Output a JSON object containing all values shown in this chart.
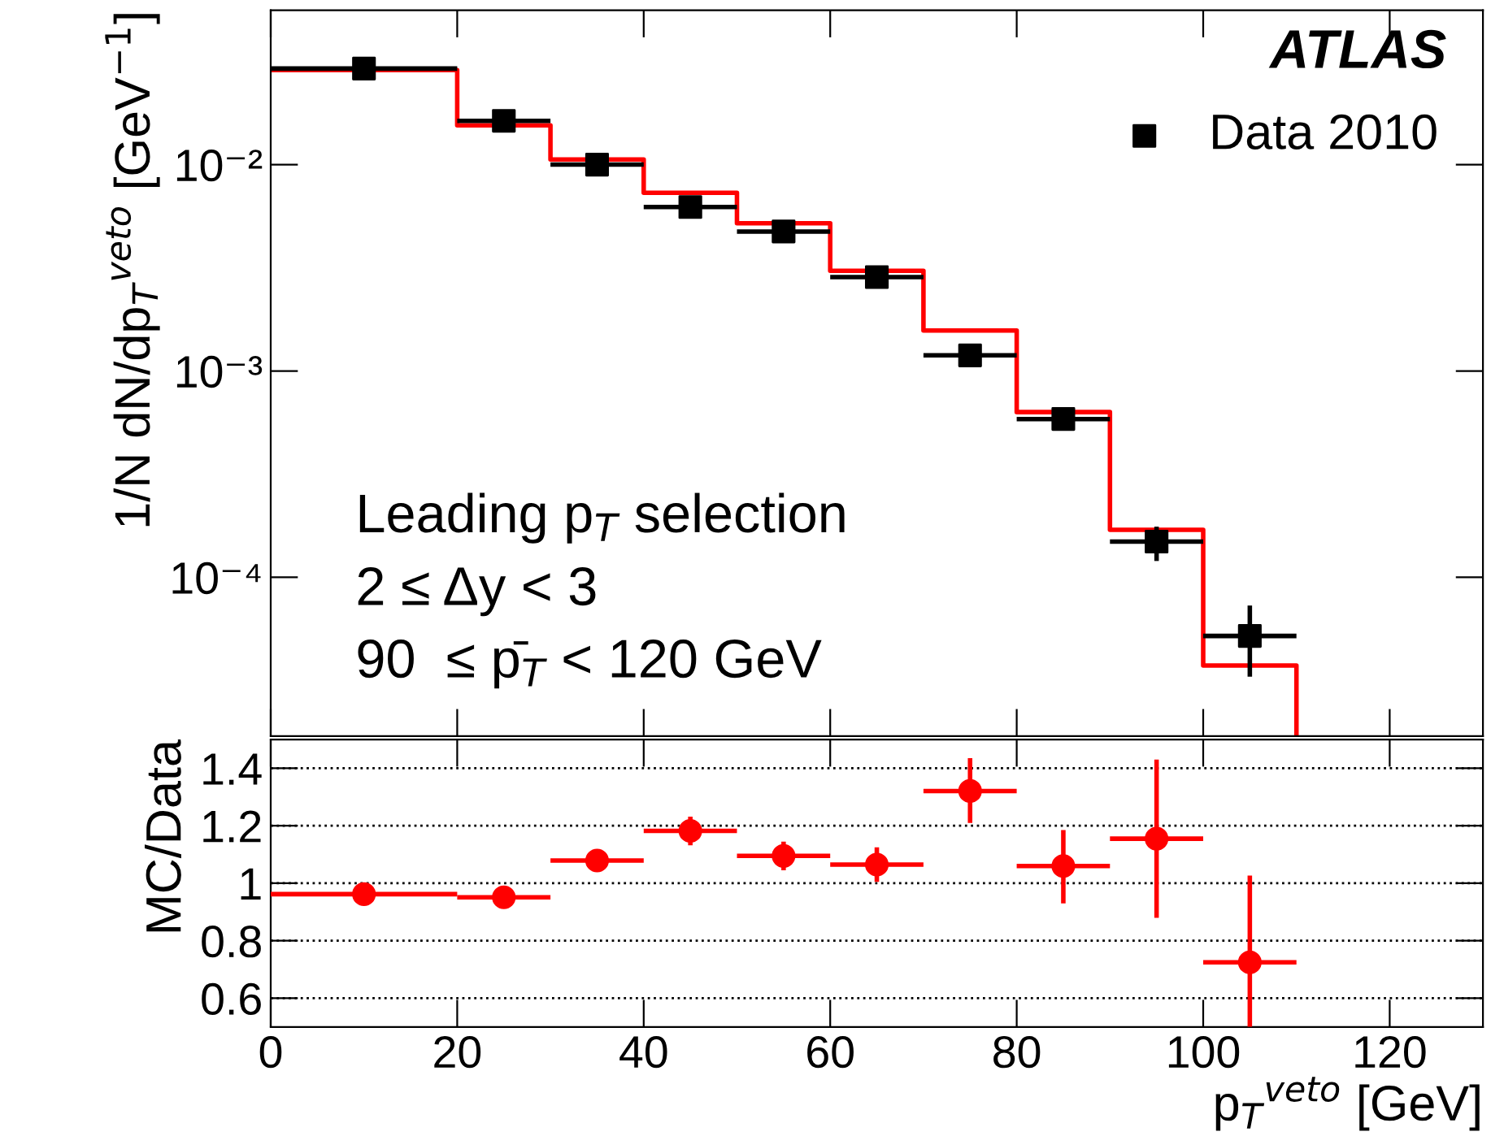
{
  "chart_data": [
    {
      "type": "scatter",
      "ylabel": "1/N dN/dp$_{T}$$^{veto}$ [GeV$^{−1}$]",
      "log": true,
      "xlim": [
        0,
        130
      ],
      "ylim": [
        1.7e-05,
        0.056
      ],
      "xticks": [
        0,
        20,
        40,
        60,
        80,
        100,
        120
      ],
      "yticks": [
        {
          "value": 0.0001,
          "label": "10⁻⁴"
        },
        {
          "value": 0.001,
          "label": "10⁻³"
        },
        {
          "value": 0.01,
          "label": "10⁻²"
        }
      ],
      "tick_labels": "y",
      "legend": "top right",
      "annotations": [
        "ATLAS",
        "Leading p$_{T}$ selection",
        "2 ≤ Δy < 3",
        "90  ≤ p̄$_{T}$ < 120 GeV"
      ],
      "series": [
        {
          "name": "Data 2010",
          "marker": "square",
          "color": "#000000",
          "x": [
            10,
            25,
            35,
            45,
            55,
            65,
            75,
            85,
            95,
            105
          ],
          "values": [
            0.0292,
            0.0163,
            0.01,
            0.00623,
            0.00474,
            0.00285,
            0.00119,
            0.000585,
            0.000149,
            5.2e-05
          ],
          "errors": [
            null,
            null,
            null,
            null,
            null,
            null,
            null,
            null,
            [
              0.00012,
              0.000176
            ],
            [
              3.3e-05,
              7.3e-05
            ]
          ],
          "xerrors": [
            10,
            5,
            5,
            5,
            5,
            5,
            5,
            5,
            5,
            5
          ]
        },
        {
          "type": "histogram",
          "color": "#ff0000",
          "bins": [
            0,
            20,
            30,
            40,
            50,
            60,
            70,
            80,
            90,
            100,
            110
          ],
          "values": [
            0.0287,
            0.0155,
            0.0106,
            0.0073,
            0.0052,
            0.00306,
            0.00157,
            0.000632,
            0.00017,
            3.74e-05
          ]
        }
      ]
    },
    {
      "type": "scatter",
      "xlabel": "p$_{T}$$^{veto}$ [GeV]",
      "ylabel": "MC/Data",
      "xlim": [
        0,
        130
      ],
      "ylim": [
        0.5,
        1.5
      ],
      "xticks": [
        0,
        20,
        40,
        60,
        80,
        100,
        120
      ],
      "yticks": [
        0.6,
        0.8,
        1,
        1.2,
        1.4
      ],
      "grid": "y",
      "line_style": "dotted",
      "series": [
        {
          "marker": "circle",
          "color": "#ff0000",
          "x": [
            10,
            25,
            35,
            45,
            55,
            65,
            75,
            85,
            95,
            105
          ],
          "values": [
            0.962,
            0.951,
            1.079,
            1.182,
            1.095,
            1.065,
            1.321,
            1.06,
            1.155,
            0.725
          ],
          "errors": [
            null,
            null,
            0.03,
            0.05,
            0.05,
            0.06,
            [
              1.21,
              1.435
            ],
            [
              0.93,
              1.185
            ],
            [
              0.88,
              1.43
            ],
            [
              0.5,
              1.027
            ]
          ],
          "xerrors": [
            10,
            5,
            5,
            5,
            5,
            5,
            5,
            5,
            5,
            5
          ]
        }
      ]
    }
  ]
}
